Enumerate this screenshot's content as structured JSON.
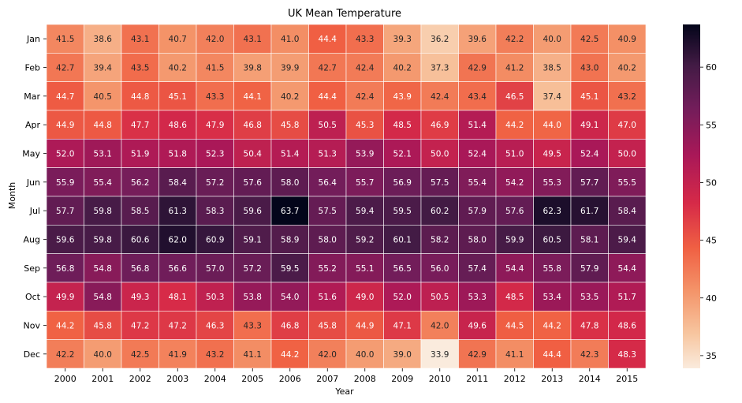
{
  "chart_data": {
    "type": "heatmap",
    "title": "UK Mean Temperature",
    "xlabel": "Year",
    "ylabel": "Month",
    "x_categories": [
      "2000",
      "2001",
      "2002",
      "2003",
      "2004",
      "2005",
      "2006",
      "2007",
      "2008",
      "2009",
      "2010",
      "2011",
      "2012",
      "2013",
      "2014",
      "2015"
    ],
    "y_categories": [
      "Jan",
      "Feb",
      "Mar",
      "Apr",
      "May",
      "Jun",
      "Jul",
      "Aug",
      "Sep",
      "Oct",
      "Nov",
      "Dec"
    ],
    "values": [
      [
        41.5,
        38.6,
        43.1,
        40.7,
        42.0,
        43.1,
        41.0,
        44.4,
        43.3,
        39.3,
        36.2,
        39.6,
        42.2,
        40.0,
        42.5,
        40.9
      ],
      [
        42.7,
        39.4,
        43.5,
        40.2,
        41.5,
        39.8,
        39.9,
        42.7,
        42.4,
        40.2,
        37.3,
        42.9,
        41.2,
        38.5,
        43.0,
        40.2
      ],
      [
        44.7,
        40.5,
        44.8,
        45.1,
        43.3,
        44.1,
        40.2,
        44.4,
        42.4,
        43.9,
        42.4,
        43.4,
        46.5,
        37.4,
        45.1,
        43.2
      ],
      [
        44.9,
        44.8,
        47.7,
        48.6,
        47.9,
        46.8,
        45.8,
        50.5,
        45.3,
        48.5,
        46.9,
        51.4,
        44.2,
        44.0,
        49.1,
        47.0
      ],
      [
        52.0,
        53.1,
        51.9,
        51.8,
        52.3,
        50.4,
        51.4,
        51.3,
        53.9,
        52.1,
        50.0,
        52.4,
        51.0,
        49.5,
        52.4,
        50.0
      ],
      [
        55.9,
        55.4,
        56.2,
        58.4,
        57.2,
        57.6,
        58.0,
        56.4,
        55.7,
        56.9,
        57.5,
        55.4,
        54.2,
        55.3,
        57.7,
        55.5
      ],
      [
        57.7,
        59.8,
        58.5,
        61.3,
        58.3,
        59.6,
        63.7,
        57.5,
        59.4,
        59.5,
        60.2,
        57.9,
        57.6,
        62.3,
        61.7,
        58.4
      ],
      [
        59.6,
        59.8,
        60.6,
        62.0,
        60.9,
        59.1,
        58.9,
        58.0,
        59.2,
        60.1,
        58.2,
        58.0,
        59.9,
        60.5,
        58.1,
        59.4
      ],
      [
        56.8,
        54.8,
        56.8,
        56.6,
        57.0,
        57.2,
        59.5,
        55.2,
        55.1,
        56.5,
        56.0,
        57.4,
        54.4,
        55.8,
        57.9,
        54.4
      ],
      [
        49.9,
        54.8,
        49.3,
        48.1,
        50.3,
        53.8,
        54.0,
        51.6,
        49.0,
        52.0,
        50.5,
        53.3,
        48.5,
        53.4,
        53.5,
        51.7
      ],
      [
        44.2,
        45.8,
        47.2,
        47.2,
        46.3,
        43.3,
        46.8,
        45.8,
        44.9,
        47.1,
        42.0,
        49.6,
        44.5,
        44.2,
        47.8,
        48.6
      ],
      [
        42.2,
        40.0,
        42.5,
        41.9,
        43.2,
        41.1,
        44.2,
        42.0,
        40.0,
        39.0,
        33.9,
        42.9,
        41.1,
        44.4,
        42.3,
        48.3
      ]
    ],
    "value_format": "0.1f",
    "color_range": [
      33.9,
      63.7
    ],
    "colormap": "rocket_r",
    "colorbar": {
      "ticks": [
        35,
        40,
        45,
        50,
        55,
        60
      ],
      "tick_labels": [
        "35",
        "40",
        "45",
        "50",
        "55",
        "60"
      ]
    },
    "grid": false,
    "legend": "colorbar-right"
  }
}
